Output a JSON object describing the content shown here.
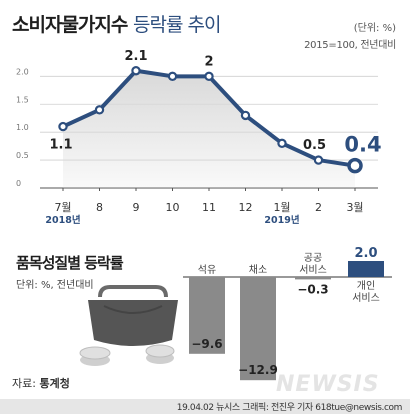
{
  "header": {
    "title_bold": "소비자물가지수",
    "title_rest": "등락률 추이",
    "unit": "(단위: %)",
    "base": "2015=100, 전년대비"
  },
  "chart_data": [
    {
      "type": "line",
      "categories": [
        "7월",
        "8",
        "9",
        "10",
        "11",
        "12",
        "1월",
        "2",
        "3월"
      ],
      "year_labels": [
        {
          "text": "2018년",
          "index": 0
        },
        {
          "text": "2019년",
          "index": 6
        }
      ],
      "y_ticks": [
        "0",
        "0.5",
        "1.0",
        "1.5",
        "2.0"
      ],
      "ylim": [
        0,
        2.4
      ],
      "series": [
        {
          "values": [
            1.1,
            1.4,
            2.1,
            2.0,
            2.0,
            1.3,
            0.8,
            0.5,
            0.4
          ]
        }
      ],
      "data_labels": [
        {
          "index": 0,
          "text": "1.1"
        },
        {
          "index": 2,
          "text": "2.1"
        },
        {
          "index": 4,
          "text": "2"
        },
        {
          "index": 7,
          "text": "0.5"
        },
        {
          "index": 8,
          "text": "0.4"
        }
      ],
      "line_color": "#2d4e7e",
      "fill_color": "#d9d9d9"
    },
    {
      "type": "bar",
      "title": "품목성질별 등락률",
      "unit": "단위: %, 전년대비",
      "categories": [
        [
          "석유"
        ],
        [
          "채소"
        ],
        [
          "공공",
          "서비스"
        ],
        [
          "개인",
          "서비스"
        ]
      ],
      "values": [
        -9.6,
        -12.9,
        -0.3,
        2.0
      ],
      "value_labels": [
        "−9.6",
        "−12.9",
        "−0.3",
        "2.0"
      ],
      "colors": [
        "#8a8a8a",
        "#8a8a8a",
        "#8a8a8a",
        "#2d4e7e"
      ]
    }
  ],
  "source": {
    "label": "자료:",
    "name": "통계청"
  },
  "credit": "19.04.02 뉴시스 그래픽: 전진우 기자 618tue@newsis.com",
  "watermark": "NEWSIS"
}
